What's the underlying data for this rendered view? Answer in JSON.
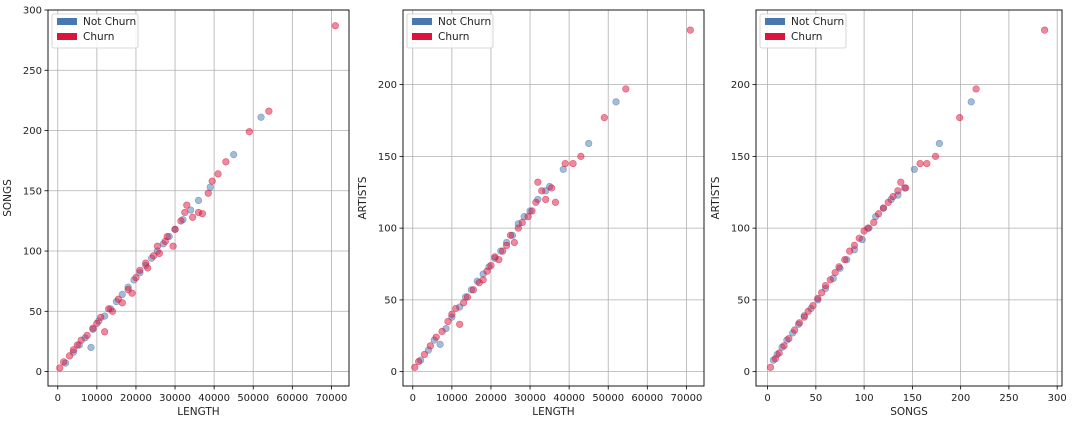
{
  "colors": {
    "not_churn": "#4878b0",
    "churn": "#dc143c",
    "grid": "#b0b0b0"
  },
  "legend": {
    "not_churn": "Not Churn",
    "churn": "Churn"
  },
  "chart_data": [
    {
      "type": "scatter",
      "xlabel": "LENGTH",
      "ylabel": "SONGS",
      "xlim": [
        -2500,
        74500
      ],
      "ylim": [
        -12,
        300
      ],
      "xticks": [
        0,
        10000,
        20000,
        30000,
        40000,
        50000,
        60000,
        70000
      ],
      "yticks": [
        0,
        50,
        100,
        150,
        200,
        250,
        300
      ],
      "grid": true,
      "legend_position": "top-left",
      "series": [
        {
          "name": "Not Churn",
          "points": [
            [
              2000,
              7
            ],
            [
              4000,
              16
            ],
            [
              5500,
              22
            ],
            [
              7000,
              28
            ],
            [
              8500,
              20
            ],
            [
              9000,
              35
            ],
            [
              10500,
              42
            ],
            [
              12000,
              46
            ],
            [
              13500,
              52
            ],
            [
              15000,
              58
            ],
            [
              16500,
              64
            ],
            [
              18000,
              70
            ],
            [
              19500,
              76
            ],
            [
              21000,
              82
            ],
            [
              22500,
              88
            ],
            [
              24000,
              94
            ],
            [
              25500,
              100
            ],
            [
              27000,
              106
            ],
            [
              28500,
              112
            ],
            [
              30000,
              118
            ],
            [
              32000,
              126
            ],
            [
              34000,
              134
            ],
            [
              36000,
              142
            ],
            [
              39000,
              153
            ],
            [
              45000,
              180
            ],
            [
              52000,
              211
            ]
          ]
        },
        {
          "name": "Churn",
          "points": [
            [
              500,
              3
            ],
            [
              1500,
              8
            ],
            [
              3000,
              13
            ],
            [
              4000,
              18
            ],
            [
              5000,
              22
            ],
            [
              6000,
              26
            ],
            [
              7500,
              30
            ],
            [
              9000,
              36
            ],
            [
              10000,
              40
            ],
            [
              11000,
              45
            ],
            [
              12000,
              33
            ],
            [
              13000,
              52
            ],
            [
              14000,
              50
            ],
            [
              15500,
              60
            ],
            [
              16500,
              57
            ],
            [
              18000,
              68
            ],
            [
              19000,
              65
            ],
            [
              20000,
              78
            ],
            [
              21000,
              84
            ],
            [
              22500,
              90
            ],
            [
              23000,
              86
            ],
            [
              24500,
              96
            ],
            [
              25500,
              104
            ],
            [
              26000,
              98
            ],
            [
              27500,
              108
            ],
            [
              28000,
              112
            ],
            [
              29500,
              104
            ],
            [
              30000,
              118
            ],
            [
              31500,
              125
            ],
            [
              32500,
              132
            ],
            [
              33000,
              138
            ],
            [
              34500,
              128
            ],
            [
              36000,
              132
            ],
            [
              37000,
              131
            ],
            [
              38500,
              148
            ],
            [
              39500,
              158
            ],
            [
              41000,
              164
            ],
            [
              43000,
              174
            ],
            [
              49000,
              199
            ],
            [
              54000,
              216
            ],
            [
              71000,
              287
            ]
          ]
        }
      ]
    },
    {
      "type": "scatter",
      "xlabel": "LENGTH",
      "ylabel": "ARTISTS",
      "xlim": [
        -2500,
        74500
      ],
      "ylim": [
        -10,
        252
      ],
      "xticks": [
        0,
        10000,
        20000,
        30000,
        40000,
        50000,
        60000,
        70000
      ],
      "yticks": [
        0,
        50,
        100,
        150,
        200
      ],
      "grid": true,
      "legend_position": "top-left",
      "series": [
        {
          "name": "Not Churn",
          "points": [
            [
              2000,
              8
            ],
            [
              4000,
              15
            ],
            [
              5500,
              22
            ],
            [
              7000,
              19
            ],
            [
              8500,
              30
            ],
            [
              10000,
              38
            ],
            [
              12000,
              45
            ],
            [
              13500,
              52
            ],
            [
              15000,
              57
            ],
            [
              16500,
              63
            ],
            [
              18000,
              68
            ],
            [
              19500,
              73
            ],
            [
              21000,
              79
            ],
            [
              22500,
              84
            ],
            [
              24000,
              90
            ],
            [
              25500,
              95
            ],
            [
              27000,
              103
            ],
            [
              28500,
              108
            ],
            [
              30000,
              112
            ],
            [
              32000,
              120
            ],
            [
              34000,
              126
            ],
            [
              35000,
              129
            ],
            [
              38500,
              141
            ],
            [
              45000,
              159
            ],
            [
              52000,
              188
            ]
          ]
        },
        {
          "name": "Churn",
          "points": [
            [
              500,
              3
            ],
            [
              1500,
              7
            ],
            [
              3000,
              12
            ],
            [
              4500,
              18
            ],
            [
              6000,
              24
            ],
            [
              7500,
              28
            ],
            [
              9000,
              35
            ],
            [
              10000,
              40
            ],
            [
              11000,
              44
            ],
            [
              12000,
              33
            ],
            [
              13000,
              48
            ],
            [
              14000,
              52
            ],
            [
              15500,
              57
            ],
            [
              17000,
              62
            ],
            [
              18000,
              64
            ],
            [
              19000,
              70
            ],
            [
              20000,
              74
            ],
            [
              21000,
              80
            ],
            [
              22000,
              78
            ],
            [
              23000,
              84
            ],
            [
              24000,
              88
            ],
            [
              25000,
              95
            ],
            [
              26000,
              90
            ],
            [
              27000,
              100
            ],
            [
              28000,
              104
            ],
            [
              29500,
              108
            ],
            [
              30500,
              112
            ],
            [
              31500,
              118
            ],
            [
              32000,
              132
            ],
            [
              33000,
              126
            ],
            [
              34000,
              120
            ],
            [
              35500,
              128
            ],
            [
              36500,
              118
            ],
            [
              39000,
              145
            ],
            [
              41000,
              145
            ],
            [
              43000,
              150
            ],
            [
              49000,
              177
            ],
            [
              54500,
              197
            ],
            [
              71000,
              238
            ]
          ]
        }
      ]
    },
    {
      "type": "scatter",
      "xlabel": "SONGS",
      "ylabel": "ARTISTS",
      "xlim": [
        -12,
        305
      ],
      "ylim": [
        -10,
        252
      ],
      "xticks": [
        0,
        50,
        100,
        150,
        200,
        250,
        300
      ],
      "yticks": [
        0,
        50,
        100,
        150,
        200
      ],
      "grid": true,
      "legend_position": "top-left",
      "series": [
        {
          "name": "Not Churn",
          "points": [
            [
              6,
              8
            ],
            [
              10,
              12
            ],
            [
              15,
              17
            ],
            [
              20,
              22
            ],
            [
              26,
              27
            ],
            [
              32,
              33
            ],
            [
              38,
              39
            ],
            [
              45,
              44
            ],
            [
              52,
              50
            ],
            [
              60,
              58
            ],
            [
              68,
              65
            ],
            [
              75,
              72
            ],
            [
              82,
              78
            ],
            [
              90,
              85
            ],
            [
              98,
              92
            ],
            [
              105,
              100
            ],
            [
              112,
              108
            ],
            [
              120,
              114
            ],
            [
              128,
              120
            ],
            [
              135,
              123
            ],
            [
              142,
              128
            ],
            [
              152,
              141
            ],
            [
              178,
              159
            ],
            [
              211,
              188
            ]
          ]
        },
        {
          "name": "Churn",
          "points": [
            [
              3,
              3
            ],
            [
              8,
              9
            ],
            [
              12,
              13
            ],
            [
              17,
              18
            ],
            [
              22,
              23
            ],
            [
              28,
              29
            ],
            [
              33,
              34
            ],
            [
              38,
              38
            ],
            [
              42,
              42
            ],
            [
              47,
              46
            ],
            [
              52,
              51
            ],
            [
              56,
              55
            ],
            [
              60,
              60
            ],
            [
              65,
              64
            ],
            [
              70,
              69
            ],
            [
              74,
              73
            ],
            [
              80,
              78
            ],
            [
              85,
              84
            ],
            [
              90,
              88
            ],
            [
              95,
              93
            ],
            [
              100,
              98
            ],
            [
              104,
              100
            ],
            [
              110,
              104
            ],
            [
              115,
              110
            ],
            [
              120,
              114
            ],
            [
              125,
              118
            ],
            [
              130,
              122
            ],
            [
              135,
              126
            ],
            [
              138,
              132
            ],
            [
              143,
              128
            ],
            [
              158,
              145
            ],
            [
              165,
              145
            ],
            [
              174,
              150
            ],
            [
              199,
              177
            ],
            [
              216,
              197
            ],
            [
              287,
              238
            ]
          ]
        }
      ]
    }
  ]
}
